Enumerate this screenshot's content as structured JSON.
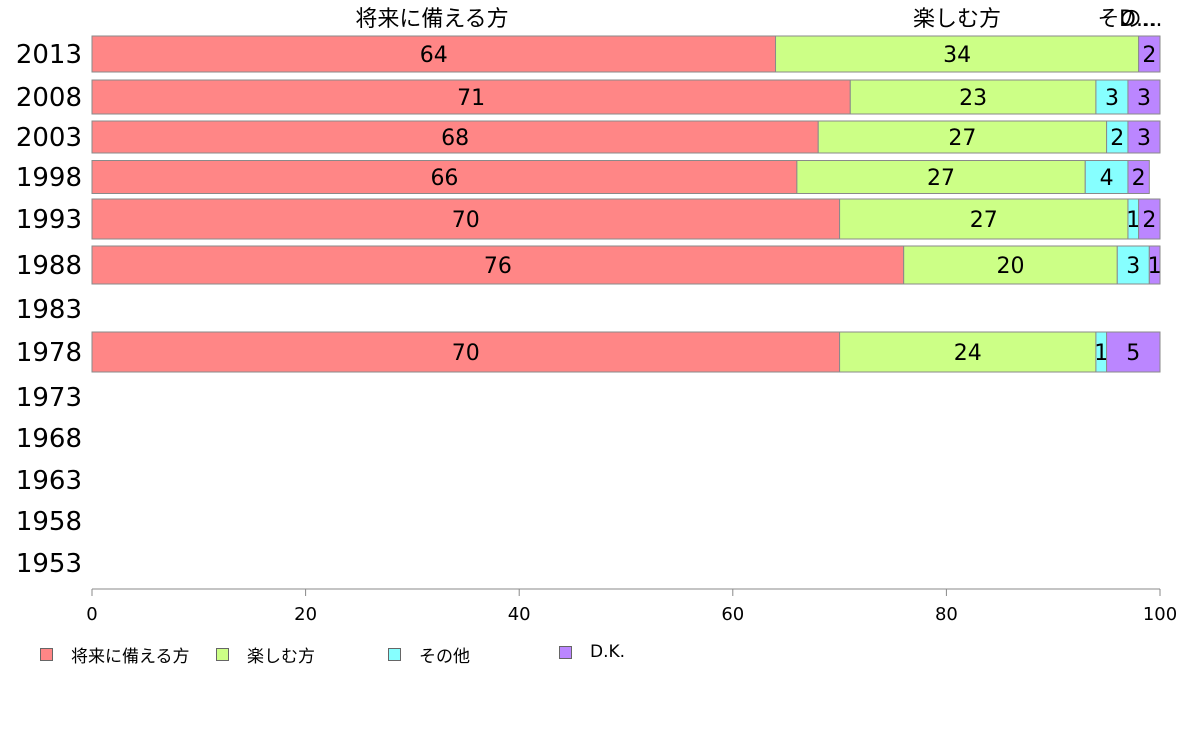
{
  "chart_data": {
    "type": "bar",
    "orientation": "horizontal",
    "stacked": true,
    "categories": [
      "2013",
      "2008",
      "2003",
      "1998",
      "1993",
      "1988",
      "1983",
      "1978",
      "1973",
      "1968",
      "1963",
      "1958",
      "1953"
    ],
    "series": [
      {
        "name": "将来に備える方",
        "color": "#ff8686",
        "values": [
          64,
          71,
          68,
          66,
          70,
          76,
          null,
          70,
          null,
          null,
          null,
          null,
          null
        ]
      },
      {
        "name": "楽しむ方",
        "color": "#ccff86",
        "values": [
          34,
          23,
          27,
          27,
          27,
          20,
          null,
          24,
          null,
          null,
          null,
          null,
          null
        ]
      },
      {
        "name": "その他",
        "color": "#86ffff",
        "values": [
          0,
          3,
          2,
          4,
          1,
          3,
          null,
          1,
          null,
          null,
          null,
          null,
          null
        ]
      },
      {
        "name": "D.K.",
        "color": "#bb86ff",
        "values": [
          2,
          3,
          3,
          2,
          2,
          1,
          null,
          5,
          null,
          null,
          null,
          null,
          null
        ]
      }
    ],
    "top_labels": [
      "将来に備える方",
      "楽しむ方",
      "その...",
      "D..."
    ],
    "xlim": [
      0,
      100
    ],
    "xticks": [
      0,
      20,
      40,
      60,
      80,
      100
    ],
    "grid": false,
    "legend_position": "bottom-left"
  }
}
